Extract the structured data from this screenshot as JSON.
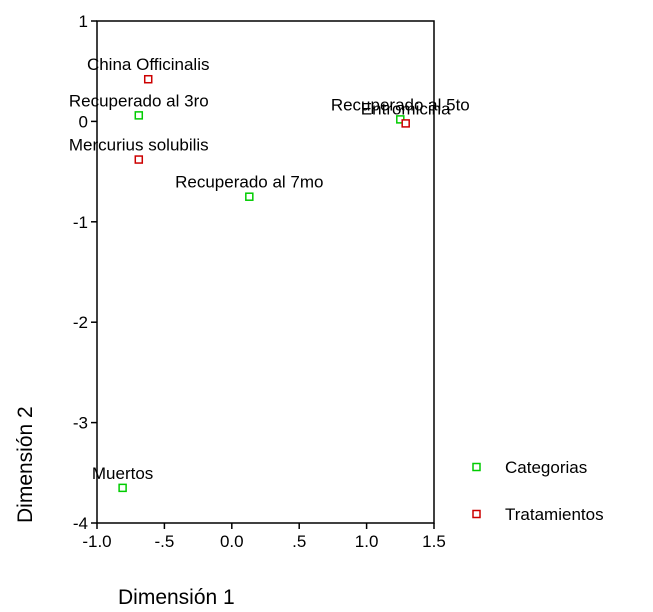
{
  "chart_data": {
    "type": "scatter",
    "xlabel": "Dimensión 1",
    "ylabel": "Dimensión 2",
    "xlim": [
      -1.0,
      1.5
    ],
    "ylim": [
      -4,
      1
    ],
    "x_ticks": [
      -1.0,
      -0.5,
      0.0,
      0.5,
      1.0,
      1.5
    ],
    "x_tick_labels": [
      "-1.0",
      "-.5",
      "0.0",
      ".5",
      "1.0",
      "1.5"
    ],
    "y_ticks": [
      1,
      0,
      -1,
      -2,
      -3,
      -4
    ],
    "y_tick_labels": [
      "1",
      "0",
      "-1",
      "-2",
      "-3",
      "-4"
    ],
    "grid": false,
    "legend_position": "right",
    "series": [
      {
        "name": "Categorias",
        "color": "#00cc00",
        "marker": "open-square",
        "points": [
          {
            "label": "Recuperado al 3ro",
            "x": -0.69,
            "y": 0.06
          },
          {
            "label": "Recuperado al 5to",
            "x": 1.25,
            "y": 0.02
          },
          {
            "label": "Recuperado al 7mo",
            "x": 0.13,
            "y": -0.75
          },
          {
            "label": "Muertos",
            "x": -0.81,
            "y": -3.65
          }
        ]
      },
      {
        "name": "Tratamientos",
        "color": "#cc0000",
        "marker": "open-square",
        "points": [
          {
            "label": "China Officinalis",
            "x": -0.62,
            "y": 0.42
          },
          {
            "label": "Entromicina",
            "x": 1.29,
            "y": -0.02
          },
          {
            "label": "Mercurius solubilis",
            "x": -0.69,
            "y": -0.38
          }
        ]
      }
    ]
  }
}
